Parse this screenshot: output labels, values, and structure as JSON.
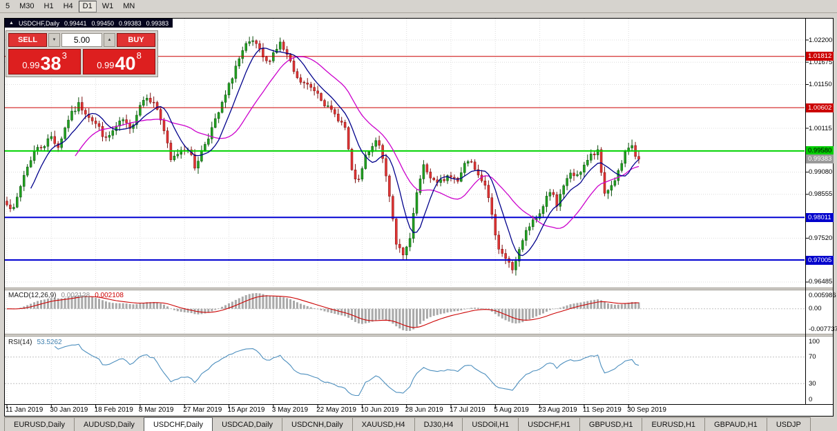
{
  "toolbar": {
    "timeframes": [
      "5",
      "M30",
      "H1",
      "H4",
      "D1",
      "W1",
      "MN"
    ],
    "active": "D1"
  },
  "chart": {
    "title_icon": "▲",
    "symbol": "USDCHF,Daily",
    "ohlc": {
      "open": "0.99441",
      "high": "0.99450",
      "low": "0.99383",
      "close": "0.99383"
    },
    "trade": {
      "sell_label": "SELL",
      "buy_label": "BUY",
      "volume": "5.00",
      "step_down_icon": "▼",
      "step_up_icon": "▲",
      "sell_price": {
        "prefix": "0.99",
        "big": "38",
        "sup": "3"
      },
      "buy_price": {
        "prefix": "0.99",
        "big": "40",
        "sup": "8"
      }
    },
    "price_axis": {
      "labels": [
        {
          "text": "1.02200",
          "price": 1.022
        },
        {
          "text": "1.01675",
          "price": 1.01675
        },
        {
          "text": "1.01150",
          "price": 1.0115
        },
        {
          "text": "1.00115",
          "price": 1.00115
        },
        {
          "text": "0.99080",
          "price": 0.9908
        },
        {
          "text": "0.98555",
          "price": 0.98555
        },
        {
          "text": "0.97520",
          "price": 0.9752
        },
        {
          "text": "0.96485",
          "price": 0.96485
        }
      ],
      "badges": [
        {
          "text": "1.01812",
          "price": 1.01812,
          "type": "red"
        },
        {
          "text": "1.00602",
          "price": 1.00602,
          "type": "red"
        },
        {
          "text": "0.99580",
          "price": 0.9958,
          "type": "green"
        },
        {
          "text": "0.99383",
          "price": 0.99383,
          "type": "current"
        },
        {
          "text": "0.98011",
          "price": 0.98011,
          "type": "blue"
        },
        {
          "text": "0.97005",
          "price": 0.97005,
          "type": "blue"
        }
      ]
    },
    "levels": [
      {
        "price": 1.01812,
        "color": "#cc0000",
        "width": 1
      },
      {
        "price": 1.00602,
        "color": "#cc0000",
        "width": 1
      },
      {
        "price": 0.9958,
        "color": "#00d200",
        "width": 2
      },
      {
        "price": 0.98011,
        "color": "#0000d2",
        "width": 2
      },
      {
        "price": 0.97005,
        "color": "#0000d2",
        "width": 2
      }
    ],
    "dates": [
      "11 Jan 2019",
      "30 Jan 2019",
      "18 Feb 2019",
      "8 Mar 2019",
      "27 Mar 2019",
      "15 Apr 2019",
      "3 May 2019",
      "22 May 2019",
      "10 Jun 2019",
      "28 Jun 2019",
      "17 Jul 2019",
      "5 Aug 2019",
      "23 Aug 2019",
      "11 Sep 2019",
      "30 Sep 2019"
    ],
    "candles": {
      "count": 186,
      "last_close": 0.99383,
      "anchors": [
        [
          0,
          0.9838
        ],
        [
          2,
          0.9818
        ],
        [
          5,
          0.9902
        ],
        [
          8,
          0.9958
        ],
        [
          11,
          0.9974
        ],
        [
          13,
          0.9992
        ],
        [
          15,
          0.9968
        ],
        [
          18,
          1.0034
        ],
        [
          21,
          1.0067
        ],
        [
          24,
          1.0042
        ],
        [
          27,
          1.0012
        ],
        [
          29,
          0.9984
        ],
        [
          32,
          1.0014
        ],
        [
          34,
          1.003
        ],
        [
          36,
          1.0006
        ],
        [
          39,
          1.0068
        ],
        [
          41,
          1.009
        ],
        [
          44,
          1.0058
        ],
        [
          46,
          1.0006
        ],
        [
          48,
          0.9934
        ],
        [
          51,
          0.9962
        ],
        [
          53,
          0.9966
        ],
        [
          55,
          0.992
        ],
        [
          58,
          0.9976
        ],
        [
          61,
          1.0028
        ],
        [
          64,
          1.0088
        ],
        [
          67,
          1.0158
        ],
        [
          70,
          1.0205
        ],
        [
          72,
          1.0217
        ],
        [
          74,
          1.0192
        ],
        [
          76,
          1.0166
        ],
        [
          78,
          1.019
        ],
        [
          80,
          1.0212
        ],
        [
          82,
          1.0182
        ],
        [
          85,
          1.0126
        ],
        [
          88,
          1.0112
        ],
        [
          91,
          1.0098
        ],
        [
          94,
          1.0058
        ],
        [
          97,
          1.0036
        ],
        [
          99,
          1.0012
        ],
        [
          101,
          0.9906
        ],
        [
          103,
          0.9884
        ],
        [
          105,
          0.9944
        ],
        [
          107,
          0.9964
        ],
        [
          108,
          0.9988
        ],
        [
          110,
          0.994
        ],
        [
          112,
          0.9856
        ],
        [
          114,
          0.9742
        ],
        [
          116,
          0.9707
        ],
        [
          118,
          0.9749
        ],
        [
          120,
          0.9858
        ],
        [
          122,
          0.9919
        ],
        [
          124,
          0.9898
        ],
        [
          126,
          0.9879
        ],
        [
          129,
          0.9899
        ],
        [
          132,
          0.9891
        ],
        [
          134,
          0.993
        ],
        [
          136,
          0.9937
        ],
        [
          138,
          0.9906
        ],
        [
          140,
          0.9883
        ],
        [
          142,
          0.9801
        ],
        [
          144,
          0.9731
        ],
        [
          146,
          0.9704
        ],
        [
          148,
          0.9679
        ],
        [
          150,
          0.9721
        ],
        [
          152,
          0.9766
        ],
        [
          154,
          0.9791
        ],
        [
          156,
          0.9809
        ],
        [
          158,
          0.9851
        ],
        [
          160,
          0.9861
        ],
        [
          161,
          0.9831
        ],
        [
          163,
          0.9871
        ],
        [
          165,
          0.9907
        ],
        [
          167,
          0.9896
        ],
        [
          169,
          0.9927
        ],
        [
          171,
          0.9946
        ],
        [
          173,
          0.9954
        ],
        [
          175,
          0.9859
        ],
        [
          177,
          0.9876
        ],
        [
          179,
          0.9906
        ],
        [
          181,
          0.9949
        ],
        [
          183,
          0.9971
        ],
        [
          184,
          0.9946
        ],
        [
          185,
          0.99383
        ]
      ]
    },
    "colors": {
      "up_fill": "#21a121",
      "up_stroke": "#0b4d0b",
      "down_fill": "#e03434",
      "down_stroke": "#7a0f0f",
      "ma_fast": "#00008b",
      "ma_slow": "#cc00cc",
      "macd_hist": "#a9a9a9",
      "macd_signal": "#cc0000",
      "rsi_line": "#4d8fbe",
      "grid": "#dcdcdc"
    },
    "indicators": {
      "macd": {
        "label": "MACD(12,26,9)",
        "value_hist": "0.002128",
        "value_signal": "0.002108",
        "axis_top": "0.005986",
        "axis_zero": "0.00",
        "axis_bottom": "-0.007737"
      },
      "rsi": {
        "label": "RSI(14)",
        "value": "53.5262",
        "axis": [
          "100",
          "70",
          "30",
          "0"
        ],
        "upper": 70,
        "lower": 30
      }
    }
  },
  "tabs": {
    "active": "USDCHF,Daily",
    "items": [
      "EURUSD,Daily",
      "AUDUSD,Daily",
      "USDCHF,Daily",
      "USDCAD,Daily",
      "USDCNH,Daily",
      "XAUUSD,H4",
      "DJ30,H4",
      "USDOil,H1",
      "USDCHF,H1",
      "GBPUSD,H1",
      "EURUSD,H1",
      "GBPAUD,H1",
      "USDJP"
    ]
  }
}
